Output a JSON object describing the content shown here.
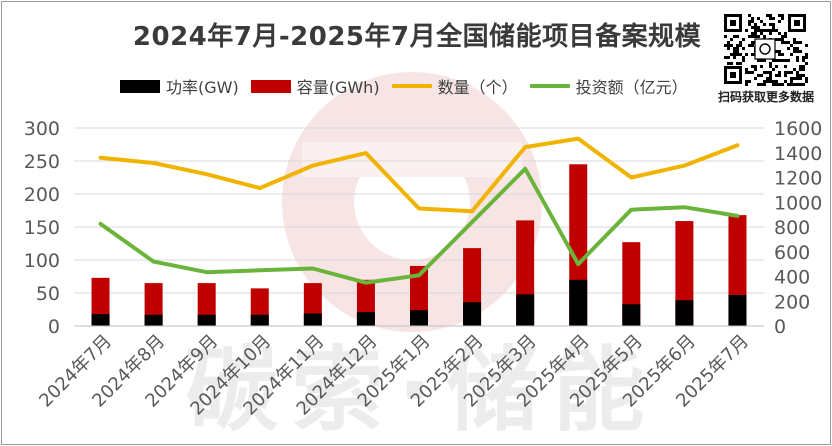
{
  "chart_data": {
    "type": "bar",
    "title": "2024年7月-2025年7月全国储能项目备案规模",
    "categories": [
      "2024年7月",
      "2024年8月",
      "2024年9月",
      "2024年10月",
      "2024年11月",
      "2024年12月",
      "2025年1月",
      "2025年2月",
      "2025年3月",
      "2025年4月",
      "2025年5月",
      "2025年6月",
      "2025年7月"
    ],
    "series": [
      {
        "name": "功率(GW)",
        "kind": "bar",
        "color": "#000000",
        "axis": "left",
        "values": [
          18,
          17,
          17,
          17,
          19,
          21,
          24,
          36,
          48,
          70,
          33,
          39,
          47
        ]
      },
      {
        "name": "容量(GWh)",
        "kind": "bar",
        "color": "#c00000",
        "axis": "left",
        "values": [
          73,
          65,
          65,
          57,
          65,
          70,
          91,
          118,
          160,
          245,
          127,
          159,
          168
        ]
      },
      {
        "name": "数量（个）",
        "kind": "line",
        "color": "#f0b400",
        "axis": "left",
        "values": [
          255,
          247,
          230,
          209,
          243,
          262,
          178,
          174,
          271,
          284,
          225,
          243,
          274
        ]
      },
      {
        "name": "投资额（亿元）",
        "kind": "line",
        "color": "#6ab43c",
        "axis": "right",
        "values": [
          825,
          520,
          435,
          450,
          465,
          350,
          410,
          840,
          1270,
          500,
          940,
          960,
          890
        ]
      }
    ],
    "ylim": [
      0,
      300
    ],
    "yticks": [
      0,
      50,
      100,
      150,
      200,
      250,
      300
    ],
    "y2lim": [
      0,
      1600
    ],
    "y2ticks": [
      0,
      200,
      400,
      600,
      800,
      1000,
      1200,
      1400,
      1600
    ],
    "grid": true,
    "legend": "top"
  },
  "watermark": {
    "text": "碳索·储能"
  },
  "qr": {
    "caption": "扫码获取更多数据"
  }
}
